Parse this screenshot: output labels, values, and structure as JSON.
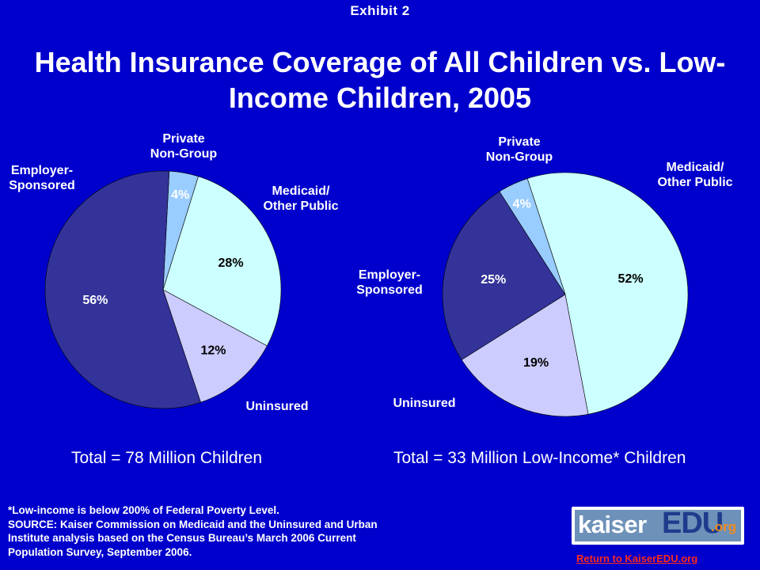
{
  "header": {
    "exhibit": "Exhibit  2",
    "title_line1": "Health Insurance Coverage of All Children vs. Low-",
    "title_line2": "Income Children, 2005"
  },
  "chart_data": [
    {
      "type": "pie",
      "title": "",
      "slices": [
        {
          "name": "Private Non-Group",
          "value": 4,
          "label": "4%",
          "color": "#99ccff"
        },
        {
          "name": "Medicaid/ Other Public",
          "value": 28,
          "label": "28%",
          "color": "#ccffff"
        },
        {
          "name": "Uninsured",
          "value": 12,
          "label": "12%",
          "color": "#ccccff"
        },
        {
          "name": "Employer- Sponsored",
          "value": 56,
          "label": "56%",
          "color": "#333399"
        }
      ],
      "category_labels": {
        "private": [
          "Private",
          "Non-Group"
        ],
        "medicaid": [
          "Medicaid/",
          "Other Public"
        ],
        "uninsured": [
          "Uninsured"
        ],
        "employer": [
          "Employer-",
          "Sponsored"
        ]
      },
      "total": "Total =  78 Million Children"
    },
    {
      "type": "pie",
      "title": "",
      "slices": [
        {
          "name": "Medicaid/ Other Public",
          "value": 52,
          "label": "52%",
          "color": "#ccffff"
        },
        {
          "name": "Uninsured",
          "value": 19,
          "label": "19%",
          "color": "#ccccff"
        },
        {
          "name": "Employer- Sponsored",
          "value": 25,
          "label": "25%",
          "color": "#333399"
        },
        {
          "name": "Private Non-Group",
          "value": 4,
          "label": "4%",
          "color": "#99ccff"
        }
      ],
      "category_labels": {
        "private": [
          "Private",
          "Non-Group"
        ],
        "medicaid": [
          "Medicaid/",
          "Other Public"
        ],
        "uninsured": [
          "Uninsured"
        ],
        "employer": [
          "Employer-",
          "Sponsored"
        ]
      },
      "total": "Total =  33 Million Low-Income* Children"
    }
  ],
  "footnote": {
    "line1": "*Low-income is below 200% of Federal Poverty Level.",
    "line2": "SOURCE: Kaiser Commission on Medicaid and the Uninsured and Urban",
    "line3": "Institute analysis based on the Census Bureau’s March 2006 Current",
    "line4": "Population Survey, September 2006."
  },
  "logo": {
    "kaiser": "kaiser",
    "edu": "EDU",
    "org": ".org"
  },
  "link": {
    "return": "Return to KaiserEDU.org"
  },
  "colors": {
    "background": "#0000cc",
    "link": "#ff2a1a"
  }
}
